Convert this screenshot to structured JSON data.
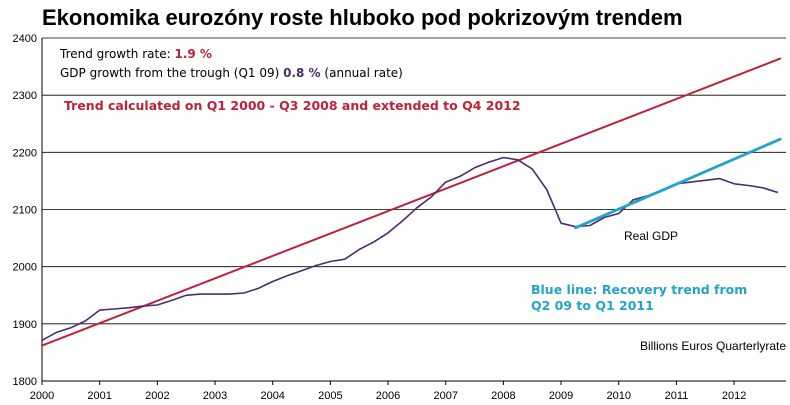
{
  "colors": {
    "trend": "#c0213a",
    "gdp": "#4b2d6e",
    "recovery": "#24a3c9",
    "grid": "#000000"
  },
  "chart_data": {
    "type": "line",
    "title": "Ekonomika eurozóny roste hluboko pod pokrizovým trendem",
    "xlim": [
      2000,
      2012.9
    ],
    "ylim": [
      1800,
      2400
    ],
    "y_ticks": [
      1800,
      1900,
      2000,
      2100,
      2200,
      2300,
      2400
    ],
    "x_ticks": [
      {
        "value": 2000,
        "label": "2000"
      },
      {
        "value": 2001,
        "label": "2001"
      },
      {
        "value": 2002,
        "label": "2002"
      },
      {
        "value": 2003,
        "label": "2003"
      },
      {
        "value": 2004,
        "label": "2004"
      },
      {
        "value": 2005,
        "label": "2005"
      },
      {
        "value": 2006,
        "label": "2006"
      },
      {
        "value": 2007,
        "label": "2007"
      },
      {
        "value": 2008,
        "label": "2008"
      },
      {
        "value": 2009,
        "label": "2009"
      },
      {
        "value": 2010,
        "label": "2010"
      },
      {
        "value": 2011,
        "label": "2011"
      },
      {
        "value": 2012,
        "label": "2012"
      }
    ],
    "grid": "horizontal",
    "annotations": {
      "trend_rate_label": "Trend growth rate:",
      "trend_rate_value": "1.9 %",
      "gdp_rate_label": "GDP growth from the trough (Q1 09)",
      "gdp_rate_value": "0.8 %",
      "gdp_rate_suffix": "(annual rate)",
      "trend_note": "Trend calculated on Q1 2000 - Q3 2008 and extended to Q4 2012",
      "recovery_note_line1": "Blue line: Recovery trend from",
      "recovery_note_line2": "Q2 09 to Q1 2011",
      "real_gdp_label": "Real GDP",
      "units_note": "Billions  Euros Quarterlyrate"
    },
    "series": [
      {
        "key": "trend",
        "x": [
          2000.0,
          2012.8
        ],
        "values": [
          1862,
          2364
        ]
      },
      {
        "key": "gdp",
        "x": [
          2000.0,
          2000.25,
          2000.5,
          2000.75,
          2001.0,
          2001.25,
          2001.5,
          2001.75,
          2002.0,
          2002.25,
          2002.5,
          2002.75,
          2003.0,
          2003.25,
          2003.5,
          2003.75,
          2004.0,
          2004.25,
          2004.5,
          2004.75,
          2005.0,
          2005.25,
          2005.5,
          2005.75,
          2006.0,
          2006.25,
          2006.5,
          2006.75,
          2007.0,
          2007.25,
          2007.5,
          2007.75,
          2008.0,
          2008.25,
          2008.5,
          2008.75,
          2009.0,
          2009.25,
          2009.5,
          2009.75,
          2010.0,
          2010.25,
          2010.5,
          2010.75,
          2011.0,
          2011.25,
          2011.5,
          2011.75,
          2012.0,
          2012.25,
          2012.5,
          2012.75
        ],
        "values": [
          1871,
          1885,
          1893,
          1905,
          1924,
          1926,
          1928,
          1931,
          1933,
          1941,
          1950,
          1952,
          1952,
          1952,
          1954,
          1962,
          1974,
          1984,
          1993,
          2002,
          2009,
          2013,
          2030,
          2043,
          2059,
          2080,
          2103,
          2122,
          2148,
          2158,
          2173,
          2183,
          2191,
          2187,
          2171,
          2135,
          2076,
          2070,
          2072,
          2086,
          2093,
          2117,
          2124,
          2133,
          2145,
          2148,
          2151,
          2154,
          2145,
          2142,
          2138,
          2130
        ]
      },
      {
        "key": "recovery",
        "x": [
          2009.25,
          2012.8
        ],
        "values": [
          2068,
          2223
        ]
      }
    ]
  }
}
